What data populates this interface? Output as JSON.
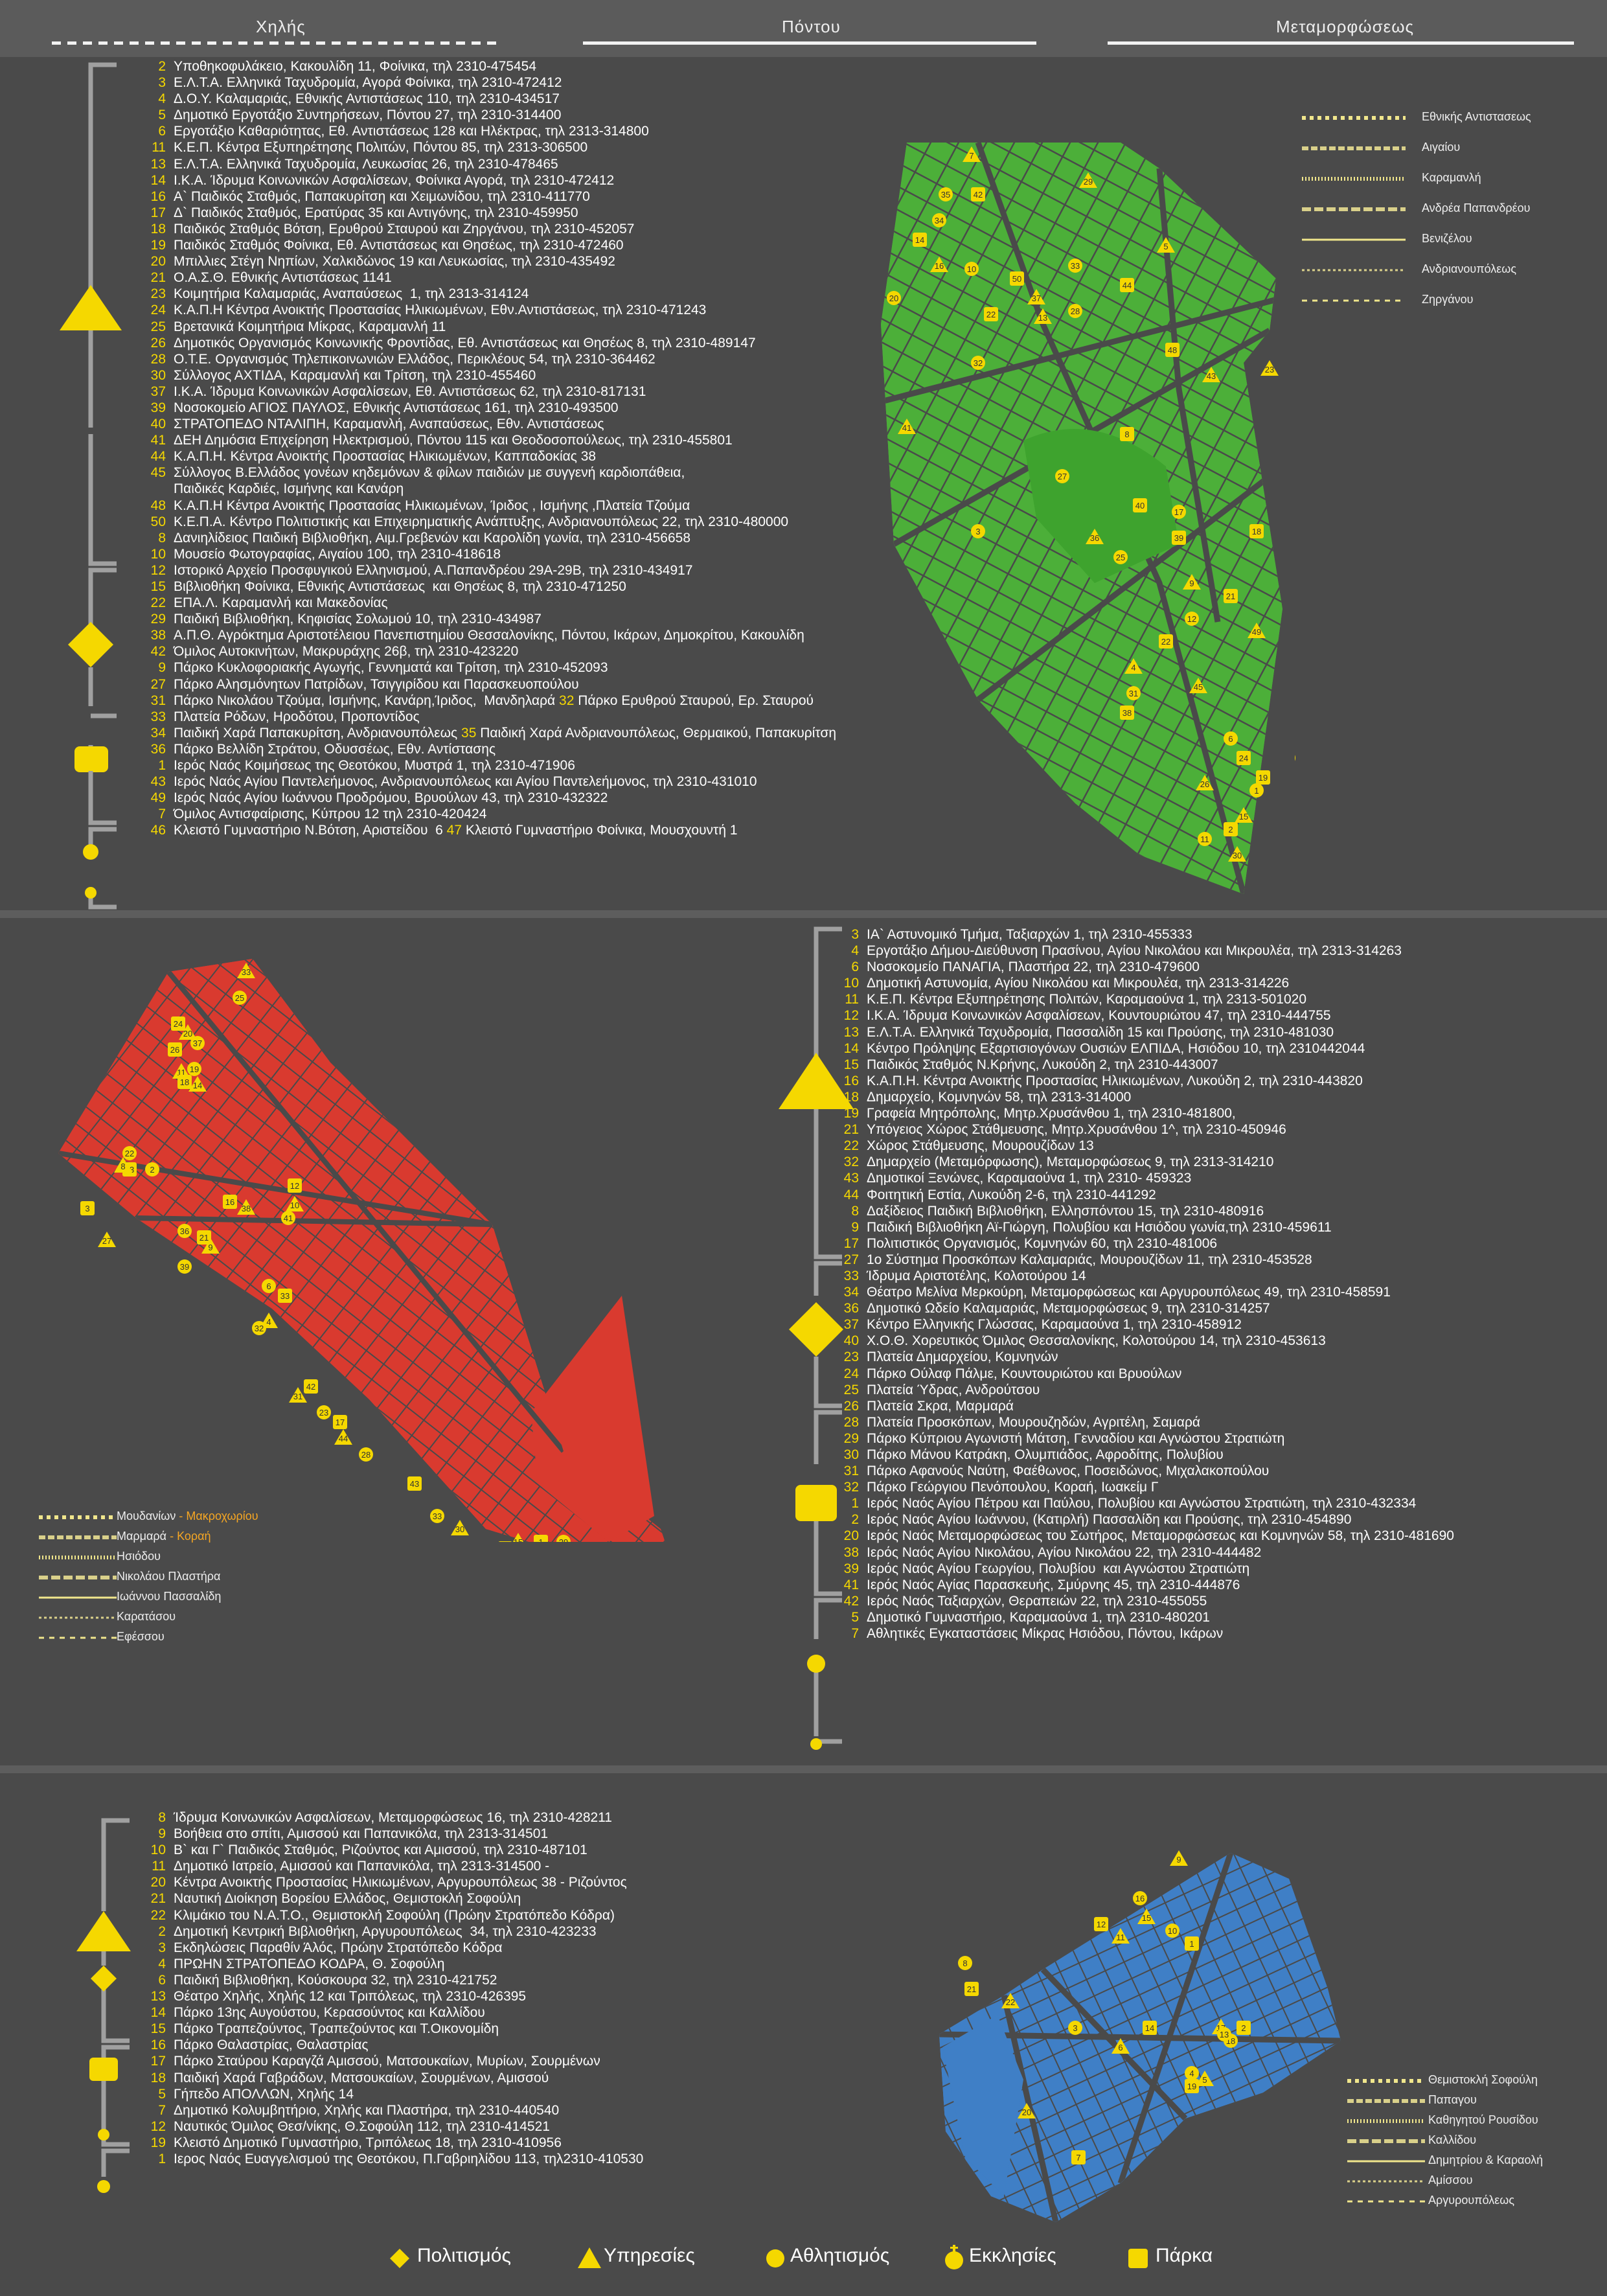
{
  "header": {
    "tabs": [
      {
        "label": "Χηλής"
      },
      {
        "label": "Πόντου"
      },
      {
        "label": "Μεταμορφώσεως"
      }
    ]
  },
  "colors": {
    "yellow": "#f5d800",
    "kalamaria_map": "#4caf39",
    "kentro_map": "#d93a2f",
    "kalamaria3_map": "#3f7fc6",
    "streets": "#4a4a4a",
    "background": "#4a4a4a"
  },
  "section1": {
    "rows": [
      {
        "n": "2",
        "t": "Υποθηκοφυλάκειο, Κακουλίδη 11, Φοίνικα, τηλ 2310-475454"
      },
      {
        "n": "3",
        "t": "Ε.Λ.Τ.Α. Ελληνικά Ταχυδρομία, Αγορά Φοίνικα, τηλ 2310-472412"
      },
      {
        "n": "4",
        "t": "Δ.Ο.Υ. Καλαμαριάς, Εθνικής Αντιστάσεως 110, τηλ 2310-434517"
      },
      {
        "n": "5",
        "t": "Δημοτικό Εργοτάξιο Συντηρήσεων, Πόντου 27, τηλ 2310-314400"
      },
      {
        "n": "6",
        "t": "Εργοτάξιο Καθαριότητας, Εθ. Αντιστάσεως 128 και Ηλέκτρας, τηλ 2313-314800"
      },
      {
        "n": "11",
        "t": "Κ.Ε.Π. Κέντρα Εξυπηρέτησης Πολιτών, Πόντου 85, τηλ 2313-306500"
      },
      {
        "n": "13",
        "t": "Ε.Λ.Τ.Α. Ελληνικά Ταχυδρομία, Λευκωσίας 26, τηλ 2310-478465"
      },
      {
        "n": "14",
        "t": "Ι.Κ.Α. Ίδρυμα Κοινωνικών Ασφαλίσεων, Φοίνικα Αγορά, τηλ 2310-472412"
      },
      {
        "n": "16",
        "t": "Α` Παιδικός Σταθμός, Παπακυρίτση και Χειμωνίδου, τηλ 2310-411770"
      },
      {
        "n": "17",
        "t": "Δ` Παιδικός Σταθμός, Ερατύρας 35 και Αντιγόνης, τηλ 2310-459950"
      },
      {
        "n": "18",
        "t": "Παιδικός Σταθμός Βότση, Ερυθρού Σταυρού και Ζηργάνου, τηλ 2310-452057"
      },
      {
        "n": "19",
        "t": "Παιδικός Σταθμός Φοίνικα, Εθ. Αντιστάσεως και Θησέως, τηλ 2310-472460"
      },
      {
        "n": "20",
        "t": "Μπιλλιες Στέγη Νηπίων, Χαλκιδώνος 19 και Λευκωσίας, τηλ 2310-435492"
      },
      {
        "n": "21",
        "t": "Ο.Α.Σ.Θ. Εθνικής Αντιστάσεως 1141"
      },
      {
        "n": "23",
        "t": "Κοιμητήρια Καλαμαριάς, Αναπαύσεως  1, τηλ 2313-314124"
      },
      {
        "n": "24",
        "t": "Κ.Α.Π.Η Κέντρα Ανοικτής Προστασίας Ηλικιωμένων, Εθν.Αντιστάσεως, τηλ 2310-471243"
      },
      {
        "n": "25",
        "t": "Βρετανικά Κοιμητήρια Μίκρας, Καραμανλή 11"
      },
      {
        "n": "26",
        "t": "Δημοτικός Οργανισμός Κοινωνικής Φροντίδας, Εθ. Αντιστάσεως και Θησέως 8, τηλ 2310-489147"
      },
      {
        "n": "28",
        "t": "Ο.Τ.Ε. Οργανισμός Τηλεπικοινωνιών Ελλάδος, Περικλέους 54, τηλ 2310-364462"
      },
      {
        "n": "30",
        "t": "Σύλλογος ΑΧΤΙΔΑ, Καραμανλή και Τρίτση, τηλ 2310-455460"
      },
      {
        "n": "37",
        "t": "Ι.Κ.Α. Ίδρυμα Κοινωνικών Ασφαλίσεων, Εθ. Αντιστάσεως 62, τηλ 2310-817131"
      },
      {
        "n": "39",
        "t": "Νοσοκομείο ΑΓΙΟΣ ΠΑΥΛΟΣ, Εθνικής Αντιστάσεως 161, τηλ 2310-493500"
      },
      {
        "n": "40",
        "t": "ΣΤΡΑΤΟΠΕΔΟ ΝΤΑΛΙΠΗ, Καραμανλή, Αναπαύσεως, Εθν. Αντιστάσεως"
      },
      {
        "n": "41",
        "t": "ΔΕΗ Δημόσια Επιχείρηση Ηλεκτρισμού, Πόντου 115 και Θεοδοσοπούλεως, τηλ 2310-455801"
      },
      {
        "n": "44",
        "t": "Κ.Α.Π.Η. Κέντρα Ανοικτής Προστασίας Ηλικιωμένων, Καππαδοκίας 38"
      },
      {
        "n": "45",
        "t": "Σύλλογος Β.Ελλάδος γονέων κηδεμόνων & φίλων παιδιών με συγγενή καρδιοπάθεια,"
      },
      {
        "n": "",
        "t": "Παιδικές Καρδιές, Ισμήνης και Κανάρη"
      },
      {
        "n": "48",
        "t": "Κ.Α.Π.Η Κέντρα Ανοικτής Προστασίας Ηλικιωμένων, Ίριδος , Ισμήνης ,Πλατεία Τζούμα"
      },
      {
        "n": "50",
        "t": "Κ.Ε.Π.Α. Κέντρο Πολιτιστικής και Επιχειρηματικής Ανάπτυξης, Ανδριανουπόλεως 22, τηλ 2310-480000"
      },
      {
        "n": "8",
        "t": "Δανιηλίδειος Παιδική Βιβλιοθήκη, Αιμ.Γρεβενών και Καρολίδη γωνία, τηλ 2310-456658"
      },
      {
        "n": "10",
        "t": "Μουσείο Φωτογραφίας, Αιγαίου 100, τηλ 2310-418618"
      },
      {
        "n": "12",
        "t": "Ιστορικό Αρχείο Προσφυγικού Ελληνισμού, Α.Παπανδρέου 29Α-29Β, τηλ 2310-434917"
      },
      {
        "n": "15",
        "t": "Βιβλιοθήκη Φοίνικα, Εθνικής Αντιστάσεως  και Θησέως 8, τηλ 2310-471250"
      },
      {
        "n": "22",
        "t": "ΕΠΑ.Λ. Καραμανλή και Μακεδονίας"
      },
      {
        "n": "29",
        "t": "Παιδική Βιβλιοθήκη, Κηφισίας Σολωμού 10, τηλ 2310-434987"
      },
      {
        "n": "38",
        "t": "Α.Π.Θ. Αγρόκτημα Αριστοτέλειου Πανεπιστημίου Θεσσαλονίκης, Πόντου, Ικάρων, Δημοκρίτου, Κακουλίδη"
      },
      {
        "n": "42",
        "t": "Όμιλος Αυτοκινήτων, Μακρυράχης 26β, τηλ 2310-423220"
      },
      {
        "n": "9",
        "t": "Πάρκο Κυκλοφοριακής Αγωγής, Γεννηματά και Τρίτση, τηλ 2310-452093"
      },
      {
        "n": "27",
        "t": "Πάρκο Αλησμόνητων Πατρίδων, Τσιγγιρίδου και Παρασκευοπούλου"
      },
      {
        "n": "31",
        "t": "Πάρκο Νικολάου Τζούμα, Ισμήνης, Κανάρη,Ίριδος,  Μανδηλαρά ",
        "n2": "32",
        "t2": " Πάρκο Ερυθρού Σταυρού, Ερ. Σταυρού"
      },
      {
        "n": "33",
        "t": "Πλατεία Ρόδων, Ηροδότου, Προποντίδος"
      },
      {
        "n": "34",
        "t": "Παιδική Χαρά Παπακυρίτση, Ανδριανουπόλεως ",
        "n2": "35",
        "t2": " Παιδική Χαρά Ανδριανουπόλεως, Θερμαικού, Παπακυρίτση"
      },
      {
        "n": "36",
        "t": "Πάρκο Βελλίδη Στράτου, Οδυσσέως, Εθν. Αντίστασης"
      },
      {
        "n": "1",
        "t": "Ιερός Ναός Κοιμήσεως της Θεοτόκου, Μυστρά 1, τηλ 2310-471906"
      },
      {
        "n": "43",
        "t": "Ιερός Ναός Αγίου Παντελεήμονος, Ανδριανουπόλεως και Αγίου Παντελεήμονος, τηλ 2310-431010"
      },
      {
        "n": "49",
        "t": "Ιερός Ναός Αγίου Ιωάννου Προδρόμου, Βρυούλων 43, τηλ 2310-432322"
      },
      {
        "n": "7",
        "t": "Όμιλος Αντισφαίρισης, Κύπρου 12 τηλ 2310-420424"
      },
      {
        "n": "46",
        "t": "Κλειστό Γυμναστήριο Ν.Βότση, Αριστείδου  6 ",
        "n2": "47",
        "t2": " Κλειστό Γυμναστήριο Φοίνικα, Μουσχουντή 1"
      }
    ],
    "legend": [
      "Εθνικής Αντιστασεως",
      "Αιγαίου",
      "Καραμανλή",
      "Ανδρέα Παπανδρέου",
      "Βενιζέλου",
      "Ανδριανουπόλεως",
      "Ζηργάνου"
    ],
    "map_labels": [
      "7",
      "35",
      "42",
      "29",
      "34",
      "14",
      "16",
      "10",
      "50",
      "37",
      "33",
      "44",
      "5",
      "20",
      "22",
      "13",
      "28",
      "48",
      "23",
      "32",
      "8",
      "43",
      "17",
      "18",
      "41",
      "27",
      "40",
      "36",
      "25",
      "39",
      "9",
      "3",
      "21",
      "49",
      "12",
      "22",
      "4",
      "31",
      "38",
      "45",
      "6",
      "24",
      "26",
      "1",
      "19",
      "15",
      "11",
      "2",
      "30",
      "47"
    ]
  },
  "section2": {
    "rows": [
      {
        "n": "3",
        "t": "ΙΑ` Αστυνομικό Τμήμα, Ταξιαρχών 1, τηλ 2310-455333"
      },
      {
        "n": "4",
        "t": "Εργοτάξιο Δήμου-Διεύθυνση Πρασίνου, Αγίου Νικολάου και Μικρουλέα, τηλ 2313-314263"
      },
      {
        "n": "6",
        "t": "Νοσοκομείο ΠΑΝΑΓΙΑ, Πλαστήρα 22, τηλ 2310-479600"
      },
      {
        "n": "10",
        "t": "Δημοτική Αστυνομία, Αγίου Νικολάου και Μικρουλέα, τηλ 2313-314226"
      },
      {
        "n": "11",
        "t": "Κ.Ε.Π. Κέντρα Εξυπηρέτησης Πολιτών, Καραμαούνα 1, τηλ 2313-501020"
      },
      {
        "n": "12",
        "t": "Ι.Κ.Α. Ίδρυμα Κοινωνικών Ασφαλίσεων, Κουντουριώτου 47, τηλ 2310-444755"
      },
      {
        "n": "13",
        "t": "Ε.Λ.Τ.Α. Ελληνικά Ταχυδρομία, Πασσαλίδη 15 και Προύσης, τηλ 2310-481030"
      },
      {
        "n": "14",
        "t": "Κέντρο Πρόληψης Εξαρτισιογόνων Ουσιών ΕΛΠΙΔΑ, Ησιόδου 10, τηλ 2310442044"
      },
      {
        "n": "15",
        "t": "Παιδικός Σταθμός Ν.Κρήνης, Λυκούδη 2, τηλ 2310-443007"
      },
      {
        "n": "16",
        "t": "Κ.Α.Π.Η. Κέντρα Ανοικτής Προστασίας Ηλικιωμένων, Λυκούδη 2, τηλ 2310-443820"
      },
      {
        "n": "18",
        "t": "Δημαρχείο, Κομνηνών 58, τηλ 2313-314000"
      },
      {
        "n": "19",
        "t": "Γραφεία Μητρόπολης, Μητρ.Χρυσάνθου 1, τηλ 2310-481800,"
      },
      {
        "n": "21",
        "t": "Υπόγειος Χώρος Στάθμευσης, Μητρ.Χρυσάνθου 1^, τηλ 2310-450946"
      },
      {
        "n": "22",
        "t": "Χώρος Στάθμευσης, Μουρουζίδων 13"
      },
      {
        "n": "32",
        "t": "Δημαρχείο (Μεταμόρφωσης), Μεταμορφώσεως 9, τηλ 2313-314210"
      },
      {
        "n": "43",
        "t": "Δημοτικοί Ξενώνες, Καραμαούνα 1, τηλ 2310- 459323"
      },
      {
        "n": "44",
        "t": "Φοιτητική Εστία, Λυκούδη 2-6, τηλ 2310-441292"
      },
      {
        "n": "8",
        "t": "Δαξίδειος Παιδική Βιβλιοθήκη, Ελλησπόντου 15, τηλ 2310-480916"
      },
      {
        "n": "9",
        "t": "Παιδική Βιβλιοθήκη Αϊ-Γιώργη, Πολυβίου και Ησιόδου γωνία,τηλ 2310-459611"
      },
      {
        "n": "17",
        "t": "Πολιτιστικός Οργανισμός, Κομνηνών 60, τηλ 2310-481006"
      },
      {
        "n": "27",
        "t": "1ο Σύστημα Προσκόπων Καλαμαριάς, Μουρουζίδων 11, τηλ 2310-453528"
      },
      {
        "n": "33",
        "t": "Ίδρυμα Αριστοτέλης, Κολοτούρου 14"
      },
      {
        "n": "34",
        "t": "Θέατρο Μελίνα Μερκούρη, Μεταμορφώσεως και Αργυρουπόλεως 49, τηλ 2310-458591"
      },
      {
        "n": "36",
        "t": "Δημοτικό Ωδείο Καλαμαριάς, Μεταμορφώσεως 9, τηλ 2310-314257"
      },
      {
        "n": "37",
        "t": "Κέντρο Ελληνικής Γλώσσας, Καραμαούνα 1, τηλ 2310-458912"
      },
      {
        "n": "40",
        "t": "Χ.Ο.Θ. Χορευτικός Όμιλος Θεσσαλονίκης, Κολοτούρου 14, τηλ 2310-453613"
      },
      {
        "n": "23",
        "t": "Πλατεία Δημαρχείου, Κομνηνών"
      },
      {
        "n": "24",
        "t": "Πάρκο Ούλαφ Πάλμε, Κουντουριώτου και Βρυούλων"
      },
      {
        "n": "25",
        "t": "Πλατεία Ύδρας, Ανδρούτσου"
      },
      {
        "n": "26",
        "t": "Πλατεία Σκρα, Μαρμαρά"
      },
      {
        "n": "28",
        "t": "Πλατεία Προσκόπων, Μουρουζηδών, Αγριτέλη, Σαμαρά"
      },
      {
        "n": "29",
        "t": "Πάρκο Κύπριου Αγωνιστή Μάτση, Γενναδίου και Αγνώστου Στρατιώτη"
      },
      {
        "n": "30",
        "t": "Πάρκο Μάνου Κατράκη, Ολυμπιάδος, Αφροδίτης, Πολυβίου"
      },
      {
        "n": "31",
        "t": "Πάρκο Αφανούς Ναύτη, Φαέθωνος, Ποσειδώνος, Μιχαλακοπούλου"
      },
      {
        "n": "32",
        "t": "Πάρκο Γεώργιου Πενόπουλου, Κοραή, Ιωακείμ Γ"
      },
      {
        "n": "1",
        "t": "Ιερός Ναός Αγίου Πέτρου και Παύλου, Πολυβίου και Αγνώστου Στρατιώτη, τηλ 2310-432334"
      },
      {
        "n": "2",
        "t": "Ιερός Ναός Αγίου Ιωάννου, (Κατιρλή) Πασσαλίδη και Προύσης, τηλ 2310-454890"
      },
      {
        "n": "20",
        "t": "Ιερός Ναός Μεταμορφώσεως του Σωτήρος, Μεταμορφώσεως και Κομνηνών 58, τηλ 2310-481690"
      },
      {
        "n": "38",
        "t": "Ιερός Ναός Αγίου Νικολάου, Αγίου Νικολάου 22, τηλ 2310-444482"
      },
      {
        "n": "39",
        "t": "Ιερός Ναός Αγίου Γεωργίου, Πολυβίου  και Αγνώστου Στρατιώτη"
      },
      {
        "n": "41",
        "t": "Ιερός Ναός Αγίας Παρασκευής, Σμύρνης 45, τηλ 2310-444876"
      },
      {
        "n": "42",
        "t": "Ιερός Ναός Ταξιαρχών, Θεραπειών 22, τηλ 2310-455055"
      },
      {
        "n": "5",
        "t": "Δημοτικό Γυμναστήριο, Καραμαούνα 1, τηλ 2310-480201"
      },
      {
        "n": "7",
        "t": "Αθλητικές Εγκαταστάσεις Μίκρας Ησιόδου, Πόντου, Ικάρων"
      }
    ],
    "legend": [
      {
        "a": "Μουδανίων",
        "b": "Μακροχωρίου"
      },
      {
        "a": "Μαρμαρά",
        "b": "Κοραή"
      },
      {
        "a": "Ησιόδου",
        "b": ""
      },
      {
        "a": "Νικολάου Πλαστήρα",
        "b": ""
      },
      {
        "a": "Ιωάννου Πασσαλίδη",
        "b": ""
      },
      {
        "a": "Καρατάσου",
        "b": ""
      },
      {
        "a": "Εφέσσου",
        "b": ""
      }
    ],
    "map_labels": [
      "33",
      "25",
      "24",
      "20",
      "37",
      "26",
      "11",
      "19",
      "18",
      "14",
      "22",
      "13",
      "8",
      "2",
      "12",
      "10",
      "41",
      "3",
      "27",
      "36",
      "21",
      "9",
      "39",
      "16",
      "38",
      "6",
      "33",
      "4",
      "32",
      "42",
      "31",
      "23",
      "17",
      "44",
      "28",
      "43",
      "30",
      "33",
      "40",
      "15",
      "29",
      "1",
      "7"
    ]
  },
  "section3": {
    "rows": [
      {
        "n": "8",
        "t": "Ίδρυμα Κοινωνικών Ασφαλίσεων, Μεταμορφώσεως 16, τηλ 2310-428211"
      },
      {
        "n": "9",
        "t": "Βοήθεια στο σπίτι, Αμισσού και Παπανικόλα, τηλ 2313-314501"
      },
      {
        "n": "10",
        "t": "Β` και Γ` Παιδικός Σταθμός, Ριζούντος και Αμισσού, τηλ 2310-487101"
      },
      {
        "n": "11",
        "t": "Δημοτικό Ιατρείο, Αμισσού και Παπανικόλα, τηλ 2313-314500 -"
      },
      {
        "n": "20",
        "t": "Κέντρα Ανοικτής Προστασίας Ηλικιωμένων, Αργυρουπόλεως 38 - Ριζούντος"
      },
      {
        "n": "21",
        "t": "Ναυτική Διοίκηση Βορείου Ελλάδος, Θεμιστοκλή Σοφούλη"
      },
      {
        "n": "22",
        "t": "Κλιμάκιο του Ν.Α.Τ.Ο., Θεμιστοκλή Σοφούλη (Πρώην Στρατόπεδο Κόδρα)"
      },
      {
        "n": "2",
        "t": "Δημοτική Κεντρική Βιβλιοθήκη, Αργυρουπόλεως  34, τηλ 2310-423233"
      },
      {
        "n": "3",
        "t": "Εκδηλώσεις Παραθίν Άλός, Πρώην Στρατόπεδο Κόδρα"
      },
      {
        "n": "4",
        "t": "ΠΡΩΗΝ ΣΤΡΑΤΟΠΕΔΟ ΚΟΔΡΑ, Θ. Σοφούλη"
      },
      {
        "n": "6",
        "t": "Παιδική Βιβλιοθήκη, Κούσκουρα 32, τηλ 2310-421752"
      },
      {
        "n": "13",
        "t": "Θέατρο Χηλής, Χηλής 12 και Τριπόλεως, τηλ 2310-426395"
      },
      {
        "n": "14",
        "t": "Πάρκο 13ης Αυγούστου, Κερασούντος και Καλλίδου"
      },
      {
        "n": "15",
        "t": "Πάρκο Τραπεζούντος, Τραπεζούντος και Τ.Οικονομίδη"
      },
      {
        "n": "16",
        "t": "Πάρκο Θαλαστρίας, Θαλαστρίας"
      },
      {
        "n": "17",
        "t": "Πάρκο Σταύρου Καραγζά Αμισσού, Ματσουκαίων, Μυρίων, Σουρμένων"
      },
      {
        "n": "18",
        "t": "Παιδική Χαρά Γαβράδων, Ματσουκαίων, Σουρμένων, Αμισσού"
      },
      {
        "n": "5",
        "t": "Γήπεδο ΑΠΟΛΛΩΝ, Χηλής 14"
      },
      {
        "n": "7",
        "t": "Δημοτικό Κολυμβητήριο, Χηλής και Πλαστήρα, τηλ 2310-440540"
      },
      {
        "n": "12",
        "t": "Ναυτικός Όμιλος Θεσ/νίκης, Θ.Σοφούλη 112, τηλ 2310-414521"
      },
      {
        "n": "19",
        "t": "Κλειστό Δημοτικό Γυμναστήριο, Τριπόλεως 18, τηλ 2310-410956"
      },
      {
        "n": "1",
        "t": "Ιερος Ναός Ευαγγελισμού της Θεοτόκου, Π.Γαβριηλίδου 113, τηλ2310-410530"
      }
    ],
    "legend": [
      "Θεμιστοκλή Σοφούλη",
      "Παπαγου",
      "Καθηγητού Ρουσίδου",
      "Καλλίδου",
      "Δημητρίου & Καραολή",
      "Αμίσσου",
      "Αργυρουπόλεως"
    ],
    "map_labels": [
      "9",
      "16",
      "12",
      "15",
      "10",
      "1",
      "11",
      "8",
      "21",
      "22",
      "3",
      "14",
      "17",
      "18",
      "2",
      "6",
      "4",
      "19",
      "5",
      "13",
      "7",
      "20"
    ]
  },
  "bottom_legend": [
    {
      "icon": "diamond-icon",
      "label": "Πολιτισμός"
    },
    {
      "icon": "triangle-icon",
      "label": "Υπηρεσίες"
    },
    {
      "icon": "circle-icon",
      "label": "Αθλητισμός"
    },
    {
      "icon": "church-icon",
      "label": "Εκκλησίες"
    },
    {
      "icon": "square-icon",
      "label": "Πάρκα"
    }
  ]
}
